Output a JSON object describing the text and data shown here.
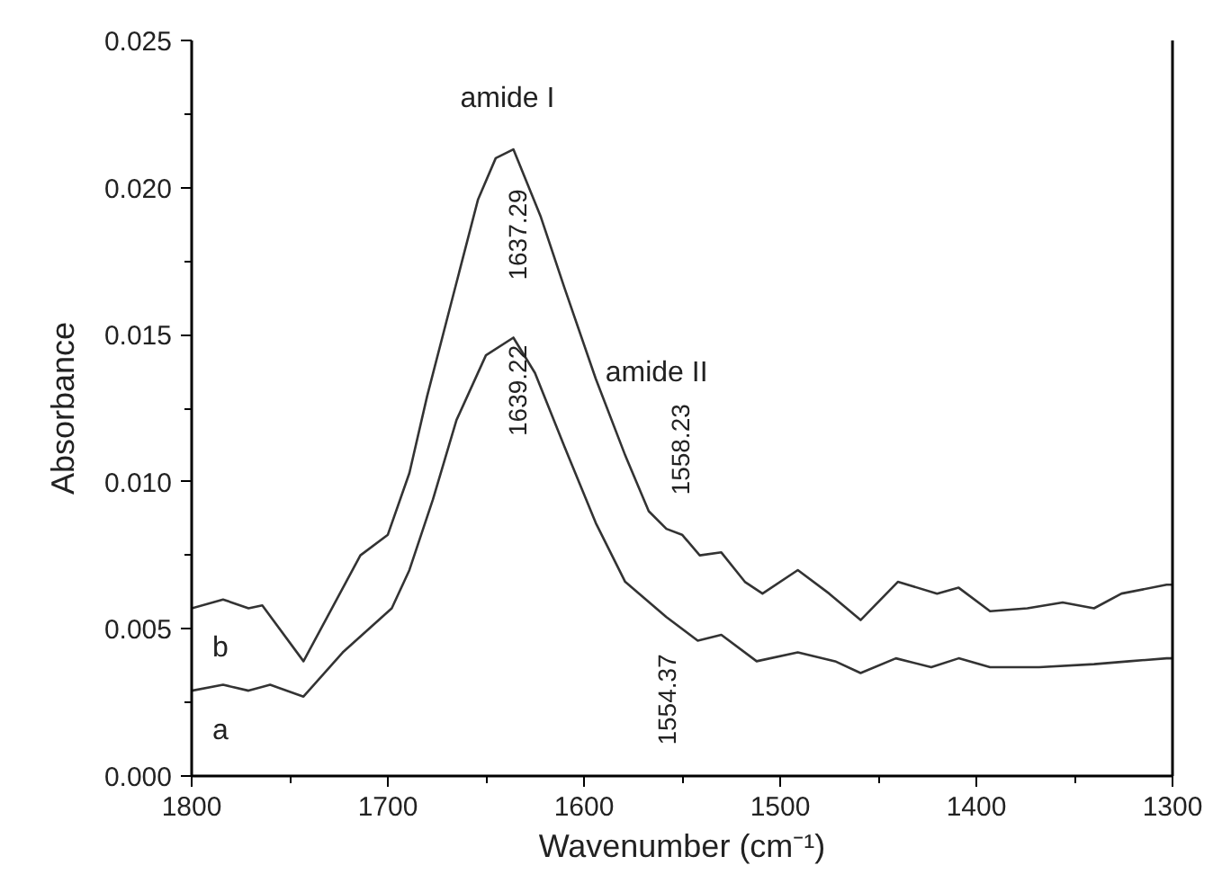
{
  "chart_data": {
    "type": "line",
    "xlabel": "Wavenumber (cm⁻¹)",
    "ylabel": "Absorbance",
    "xlim": [
      1800,
      1300
    ],
    "xticks": [
      1800,
      1700,
      1600,
      1500,
      1400,
      1300
    ],
    "ylim": [
      0,
      0.025
    ],
    "yticks": [
      {
        "value": 0,
        "label": "0.000"
      },
      {
        "value": 0.005,
        "label": "0.005"
      },
      {
        "value": 0.01,
        "label": "0.010"
      },
      {
        "value": 0.015,
        "label": "0.015"
      },
      {
        "value": 0.02,
        "label": "0.020"
      },
      {
        "value": 0.025,
        "label": "0.025"
      }
    ],
    "grid": false,
    "marker": "none",
    "line_style": "solid",
    "series": [
      {
        "name": "b",
        "color": "#333333",
        "x": [
          1800,
          1784,
          1771,
          1764,
          1743,
          1714,
          1700,
          1689,
          1680,
          1668,
          1654,
          1645,
          1636,
          1622,
          1610,
          1594,
          1579,
          1567,
          1558,
          1550,
          1541,
          1530,
          1518,
          1509,
          1491,
          1475,
          1459,
          1440,
          1420,
          1409,
          1393,
          1374,
          1356,
          1340,
          1326,
          1303,
          1300
        ],
        "values": [
          0.0057,
          0.006,
          0.0057,
          0.0058,
          0.0039,
          0.0075,
          0.0082,
          0.0103,
          0.0129,
          0.016,
          0.0196,
          0.021,
          0.0213,
          0.019,
          0.0166,
          0.0135,
          0.0109,
          0.009,
          0.0084,
          0.0082,
          0.0075,
          0.0076,
          0.0066,
          0.0062,
          0.007,
          0.0062,
          0.0053,
          0.0066,
          0.0062,
          0.0064,
          0.0056,
          0.0057,
          0.0059,
          0.0057,
          0.0062,
          0.0065,
          0.0065
        ]
      },
      {
        "name": "a",
        "color": "#333333",
        "x": [
          1800,
          1784,
          1771,
          1760,
          1743,
          1723,
          1698,
          1689,
          1677,
          1665,
          1650,
          1636,
          1625,
          1610,
          1594,
          1579,
          1558,
          1542,
          1530,
          1512,
          1491,
          1472,
          1459,
          1441,
          1423,
          1409,
          1393,
          1368,
          1340,
          1322,
          1303,
          1300
        ],
        "values": [
          0.0029,
          0.0031,
          0.0029,
          0.0031,
          0.0027,
          0.0042,
          0.0057,
          0.007,
          0.0094,
          0.0121,
          0.0143,
          0.0149,
          0.0137,
          0.0112,
          0.0086,
          0.0066,
          0.0054,
          0.0046,
          0.0048,
          0.0039,
          0.0042,
          0.0039,
          0.0035,
          0.004,
          0.0037,
          0.004,
          0.0037,
          0.0037,
          0.0038,
          0.0039,
          0.004,
          0.004
        ]
      }
    ],
    "annotations": [
      "amide I",
      "1637.29",
      "1639.22",
      "amide II",
      "1558.23",
      "1554.37"
    ]
  }
}
